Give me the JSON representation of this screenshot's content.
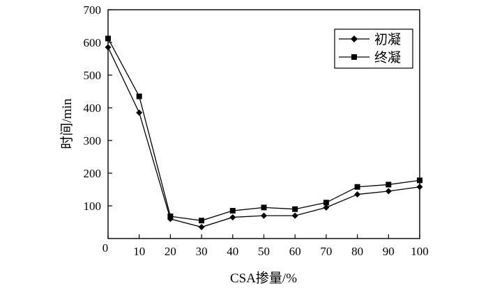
{
  "chart_data": {
    "type": "line",
    "title": "",
    "xlabel": "CSA掺量/%",
    "ylabel": "时间/min",
    "xlim": [
      0,
      100
    ],
    "ylim": [
      0,
      700
    ],
    "xticks": [
      0,
      10,
      20,
      30,
      40,
      50,
      60,
      70,
      80,
      90,
      100
    ],
    "yticks": [
      100,
      200,
      300,
      400,
      500,
      600,
      700
    ],
    "y_origin_label": "0",
    "grid": false,
    "legend_position": "top-right",
    "x": [
      0,
      10,
      20,
      30,
      40,
      50,
      60,
      70,
      80,
      90,
      100
    ],
    "series": [
      {
        "name": "初凝",
        "marker": "diamond",
        "color": "#000000",
        "values": [
          585,
          385,
          60,
          35,
          65,
          70,
          70,
          95,
          135,
          145,
          158
        ]
      },
      {
        "name": "终凝",
        "marker": "square",
        "color": "#000000",
        "values": [
          612,
          435,
          68,
          55,
          85,
          95,
          90,
          110,
          158,
          165,
          178
        ]
      }
    ]
  }
}
